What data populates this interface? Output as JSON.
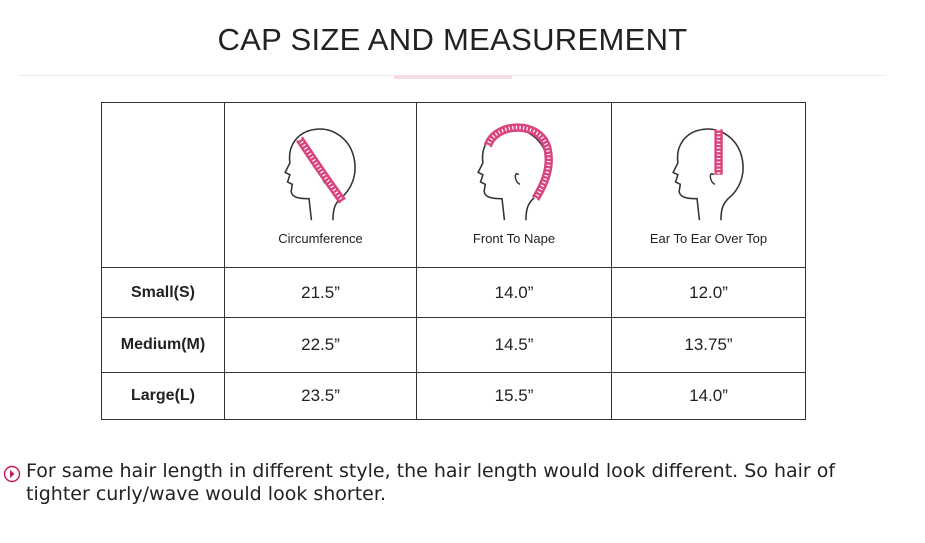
{
  "header": {
    "title": "CAP SIZE AND MEASUREMENT"
  },
  "table": {
    "columns": [
      "Circumference",
      "Front To Nape",
      "Ear To Ear Over Top"
    ],
    "rows": [
      [
        "Small(S)",
        "21.5”",
        "14.0”",
        "12.0”"
      ],
      [
        "Medium(M)",
        "22.5”",
        "14.5”",
        "13.75”"
      ],
      [
        "Large(L)",
        "23.5”",
        "15.5”",
        "14.0”"
      ]
    ]
  },
  "note": "For same hair length in different style, the hair length would look different. So hair of tighter curly/wave would look shorter."
}
